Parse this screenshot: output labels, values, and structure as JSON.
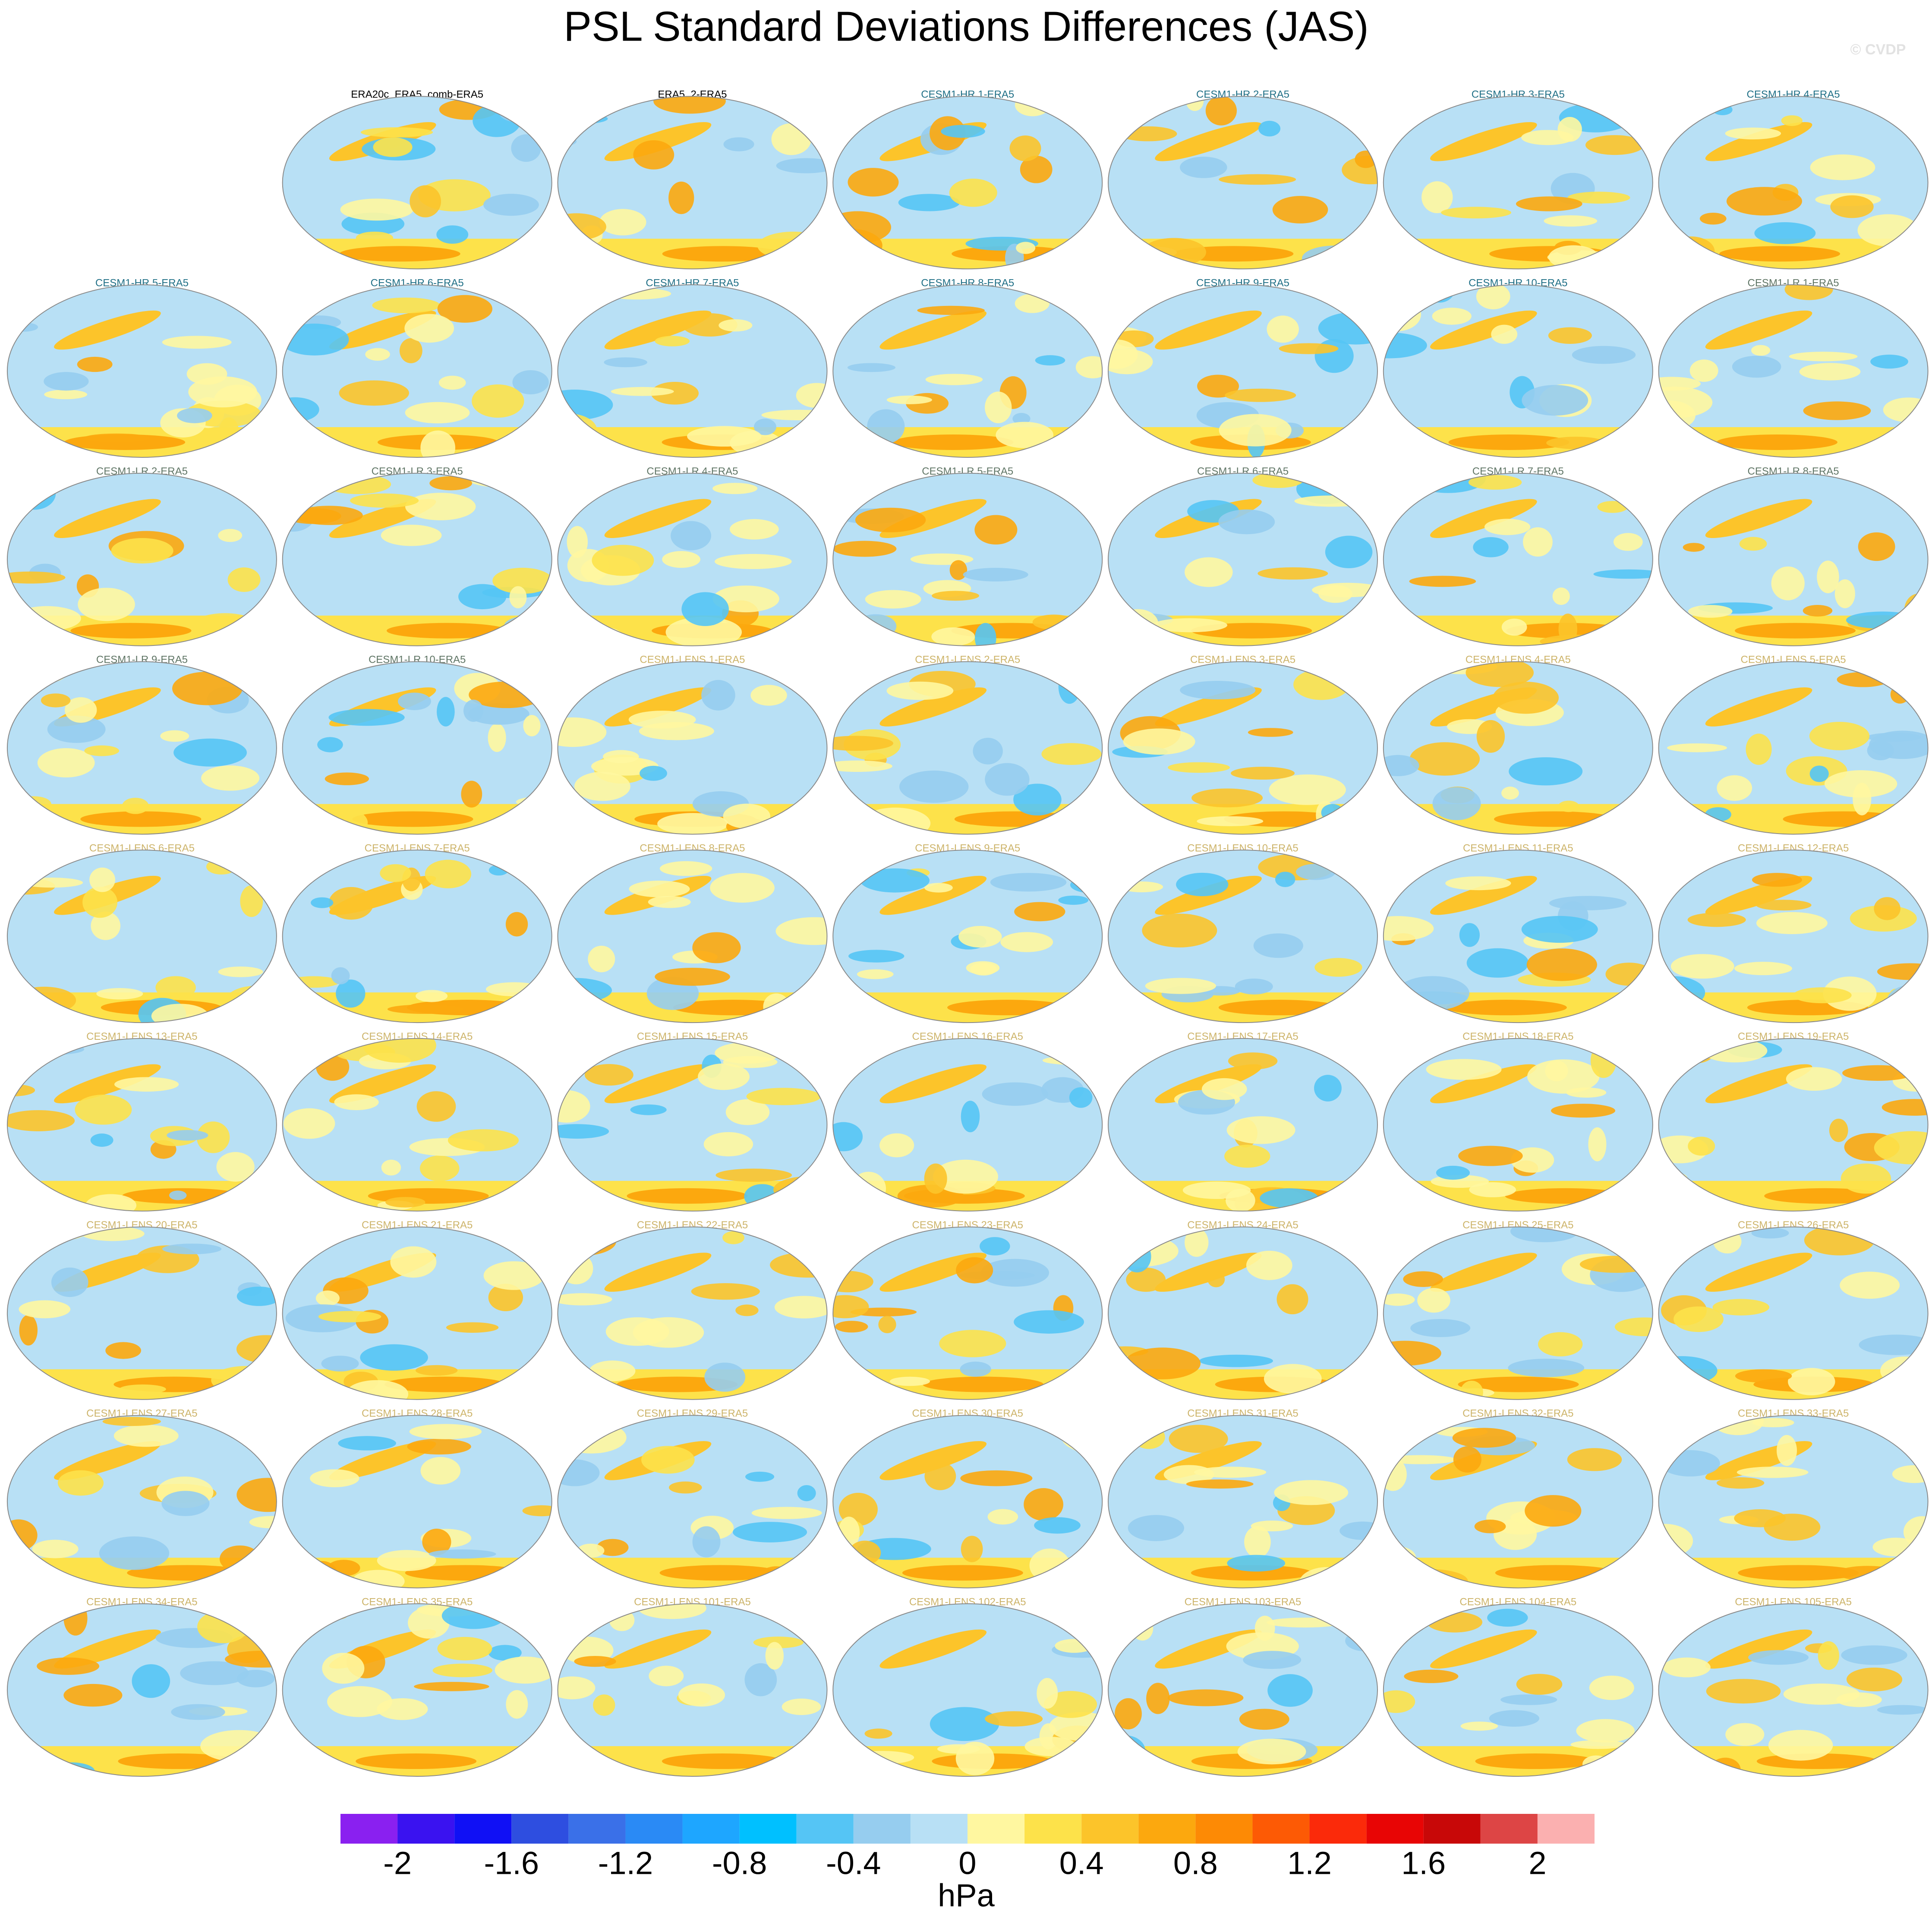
{
  "chart_data": {
    "type": "map-panels",
    "title": "PSL Standard Deviations Differences (JAS)",
    "watermark": "© CVDP",
    "panels": [
      {
        "title": "ERA20c_ERA5_comb-ERA5",
        "color": "#000000"
      },
      {
        "title": "ERA5_2-ERA5",
        "color": "#000000"
      },
      {
        "title": "CESM1-HR 1-ERA5",
        "color": "#1f6f86"
      },
      {
        "title": "CESM1-HR 2-ERA5",
        "color": "#1f6f86"
      },
      {
        "title": "CESM1-HR 3-ERA5",
        "color": "#1f6f86"
      },
      {
        "title": "CESM1-HR 4-ERA5",
        "color": "#1f6f86"
      },
      {
        "title": "CESM1-HR 5-ERA5",
        "color": "#1f6f86"
      },
      {
        "title": "CESM1-HR 6-ERA5",
        "color": "#1f6f86"
      },
      {
        "title": "CESM1-HR 7-ERA5",
        "color": "#1f6f86"
      },
      {
        "title": "CESM1-HR 8-ERA5",
        "color": "#1f6f86"
      },
      {
        "title": "CESM1-HR 9-ERA5",
        "color": "#1f6f86"
      },
      {
        "title": "CESM1-HR 10-ERA5",
        "color": "#1f6f86"
      },
      {
        "title": "CESM1-LR 1-ERA5",
        "color": "#5f7565"
      },
      {
        "title": "CESM1-LR 2-ERA5",
        "color": "#5f7565"
      },
      {
        "title": "CESM1-LR 3-ERA5",
        "color": "#5f7565"
      },
      {
        "title": "CESM1-LR 4-ERA5",
        "color": "#5f7565"
      },
      {
        "title": "CESM1-LR 5-ERA5",
        "color": "#5f7565"
      },
      {
        "title": "CESM1-LR 6-ERA5",
        "color": "#5f7565"
      },
      {
        "title": "CESM1-LR 7-ERA5",
        "color": "#5f7565"
      },
      {
        "title": "CESM1-LR 8-ERA5",
        "color": "#5f7565"
      },
      {
        "title": "CESM1-LR 9-ERA5",
        "color": "#5f7565"
      },
      {
        "title": "CESM1-LR 10-ERA5",
        "color": "#5f7565"
      },
      {
        "title": "CESM1-LENS 1-ERA5",
        "color": "#cdb46a"
      },
      {
        "title": "CESM1-LENS 2-ERA5",
        "color": "#cdb46a"
      },
      {
        "title": "CESM1-LENS 3-ERA5",
        "color": "#cdb46a"
      },
      {
        "title": "CESM1-LENS 4-ERA5",
        "color": "#cdb46a"
      },
      {
        "title": "CESM1-LENS 5-ERA5",
        "color": "#cdb46a"
      },
      {
        "title": "CESM1-LENS 6-ERA5",
        "color": "#cdb46a"
      },
      {
        "title": "CESM1-LENS 7-ERA5",
        "color": "#cdb46a"
      },
      {
        "title": "CESM1-LENS 8-ERA5",
        "color": "#cdb46a"
      },
      {
        "title": "CESM1-LENS 9-ERA5",
        "color": "#cdb46a"
      },
      {
        "title": "CESM1-LENS 10-ERA5",
        "color": "#cdb46a"
      },
      {
        "title": "CESM1-LENS 11-ERA5",
        "color": "#cdb46a"
      },
      {
        "title": "CESM1-LENS 12-ERA5",
        "color": "#cdb46a"
      },
      {
        "title": "CESM1-LENS 13-ERA5",
        "color": "#cdb46a"
      },
      {
        "title": "CESM1-LENS 14-ERA5",
        "color": "#cdb46a"
      },
      {
        "title": "CESM1-LENS 15-ERA5",
        "color": "#cdb46a"
      },
      {
        "title": "CESM1-LENS 16-ERA5",
        "color": "#cdb46a"
      },
      {
        "title": "CESM1-LENS 17-ERA5",
        "color": "#cdb46a"
      },
      {
        "title": "CESM1-LENS 18-ERA5",
        "color": "#cdb46a"
      },
      {
        "title": "CESM1-LENS 19-ERA5",
        "color": "#cdb46a"
      },
      {
        "title": "CESM1-LENS 20-ERA5",
        "color": "#cdb46a"
      },
      {
        "title": "CESM1-LENS 21-ERA5",
        "color": "#cdb46a"
      },
      {
        "title": "CESM1-LENS 22-ERA5",
        "color": "#cdb46a"
      },
      {
        "title": "CESM1-LENS 23-ERA5",
        "color": "#cdb46a"
      },
      {
        "title": "CESM1-LENS 24-ERA5",
        "color": "#cdb46a"
      },
      {
        "title": "CESM1-LENS 25-ERA5",
        "color": "#cdb46a"
      },
      {
        "title": "CESM1-LENS 26-ERA5",
        "color": "#cdb46a"
      },
      {
        "title": "CESM1-LENS 27-ERA5",
        "color": "#cdb46a"
      },
      {
        "title": "CESM1-LENS 28-ERA5",
        "color": "#cdb46a"
      },
      {
        "title": "CESM1-LENS 29-ERA5",
        "color": "#cdb46a"
      },
      {
        "title": "CESM1-LENS 30-ERA5",
        "color": "#cdb46a"
      },
      {
        "title": "CESM1-LENS 31-ERA5",
        "color": "#cdb46a"
      },
      {
        "title": "CESM1-LENS 32-ERA5",
        "color": "#cdb46a"
      },
      {
        "title": "CESM1-LENS 33-ERA5",
        "color": "#cdb46a"
      },
      {
        "title": "CESM1-LENS 34-ERA5",
        "color": "#cdb46a"
      },
      {
        "title": "CESM1-LENS 35-ERA5",
        "color": "#cdb46a"
      },
      {
        "title": "CESM1-LENS 101-ERA5",
        "color": "#cdb46a"
      },
      {
        "title": "CESM1-LENS 102-ERA5",
        "color": "#cdb46a"
      },
      {
        "title": "CESM1-LENS 103-ERA5",
        "color": "#cdb46a"
      },
      {
        "title": "CESM1-LENS 104-ERA5",
        "color": "#cdb46a"
      },
      {
        "title": "CESM1-LENS 105-ERA5",
        "color": "#cdb46a"
      }
    ],
    "colorbar": {
      "type": "colorbar",
      "label": "hPa",
      "xlim": [
        -2.2,
        2.2
      ],
      "levels": [
        -2,
        -1.8,
        -1.6,
        -1.4,
        -1.2,
        -1,
        -0.8,
        -0.6,
        -0.4,
        -0.2,
        0,
        0.2,
        0.4,
        0.6,
        0.8,
        1,
        1.2,
        1.4,
        1.6,
        1.8,
        2
      ],
      "colors": [
        "#8a20f0",
        "#3a12f0",
        "#1010f5",
        "#2e4ee0",
        "#3a70e8",
        "#2a8af5",
        "#1ea6ff",
        "#00c0ff",
        "#55c5f5",
        "#96cdef",
        "#b8e0f5",
        "#fff7a0",
        "#fde24a",
        "#fcc42a",
        "#fca80e",
        "#fd8a05",
        "#fd5a05",
        "#fb2a0a",
        "#e80505",
        "#c80808",
        "#dd4545",
        "#fbb0b0"
      ],
      "xticks": [
        -2,
        -1.6,
        -1.2,
        -0.8,
        -0.4,
        0,
        0.4,
        0.8,
        1.2,
        1.6,
        2
      ]
    }
  }
}
